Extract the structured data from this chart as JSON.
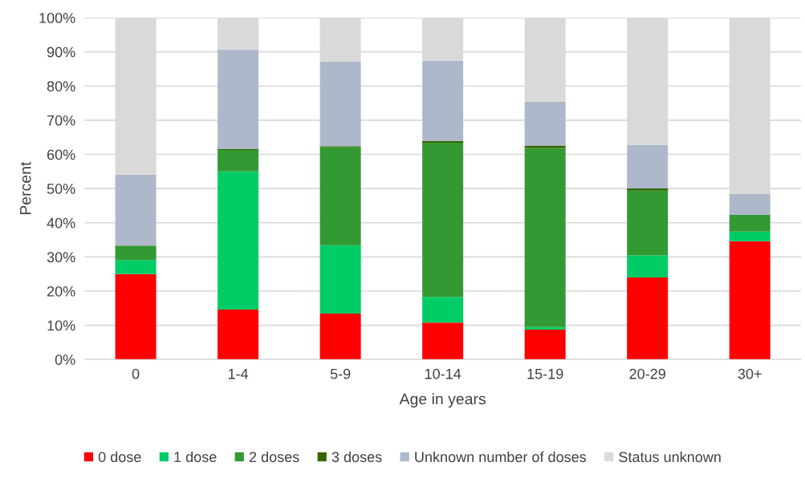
{
  "chart_data": {
    "type": "bar",
    "stacked": true,
    "xlabel": "Age in years",
    "ylabel": "Percent",
    "categories": [
      "0",
      "1-4",
      "5-9",
      "10-14",
      "15-19",
      "20-29",
      "30+"
    ],
    "series": [
      {
        "name": "0 dose",
        "color": "#ff0000",
        "values": [
          25.0,
          14.6,
          13.4,
          10.8,
          8.7,
          24.0,
          34.6
        ]
      },
      {
        "name": "1 dose",
        "color": "#00cc66",
        "values": [
          4.1,
          40.4,
          20.0,
          7.5,
          0.8,
          6.5,
          2.8
        ]
      },
      {
        "name": "2 doses",
        "color": "#339933",
        "values": [
          4.1,
          6.3,
          28.7,
          45.1,
          52.4,
          18.9,
          4.9
        ]
      },
      {
        "name": "3 doses",
        "color": "#336600",
        "values": [
          0.1,
          0.2,
          0.3,
          0.5,
          0.7,
          0.6,
          null
        ]
      },
      {
        "name": "Unknown number of doses",
        "color": "#adb9ca",
        "values": [
          20.8,
          29.2,
          24.8,
          23.5,
          12.8,
          12.8,
          6.1
        ]
      },
      {
        "name": "Status unknown",
        "color": "#d9d9d9",
        "values": [
          45.9,
          9.3,
          12.8,
          12.6,
          24.6,
          37.2,
          51.5
        ]
      }
    ],
    "ylim": [
      0,
      100
    ],
    "yticks": [
      {
        "value": 0,
        "label": "0%"
      },
      {
        "value": 10,
        "label": "10%"
      },
      {
        "value": 20,
        "label": "20%"
      },
      {
        "value": 30,
        "label": "30%"
      },
      {
        "value": 40,
        "label": "40%"
      },
      {
        "value": 50,
        "label": "50%"
      },
      {
        "value": 60,
        "label": "60%"
      },
      {
        "value": 70,
        "label": "70%"
      },
      {
        "value": 80,
        "label": "80%"
      },
      {
        "value": 90,
        "label": "90%"
      },
      {
        "value": 100,
        "label": "100%"
      }
    ],
    "grid": "y",
    "legend": "bottom"
  }
}
